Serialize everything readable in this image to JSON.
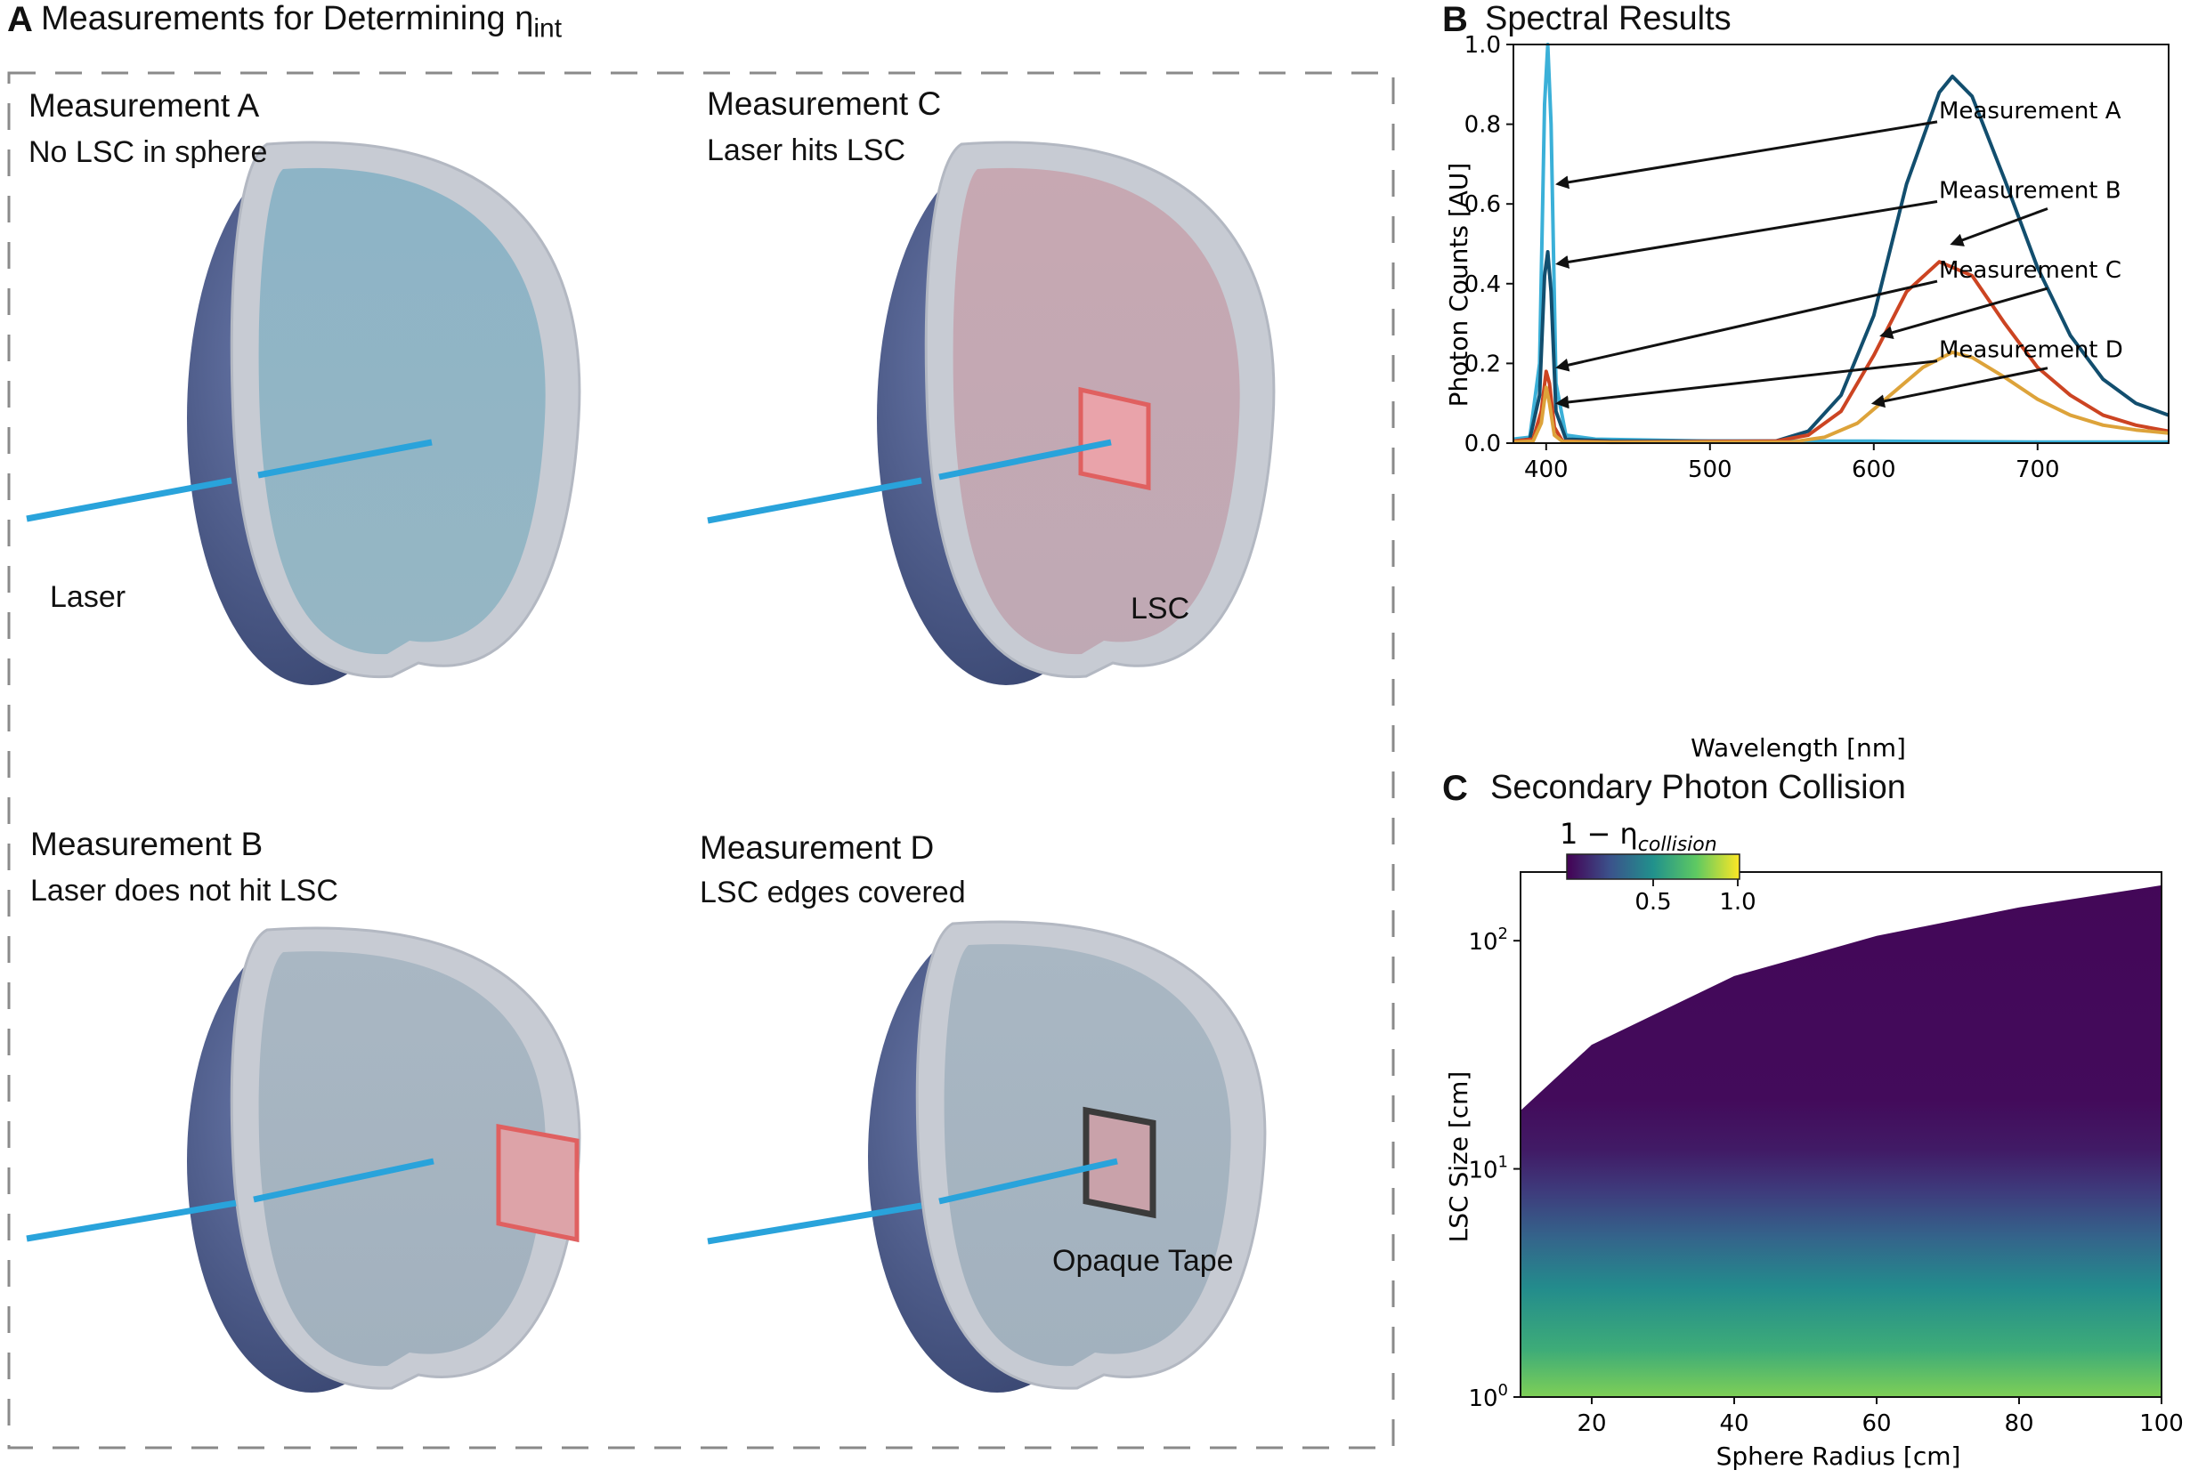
{
  "panel_a": {
    "letter": "A",
    "title": "Measurements for Determining η",
    "title_sub": "int",
    "measurements": [
      {
        "title": "Measurement A",
        "subtitle": "No LSC in sphere",
        "label": "Laser"
      },
      {
        "title": "Measurement C",
        "subtitle": "Laser hits LSC",
        "label": "LSC"
      },
      {
        "title": "Measurement B",
        "subtitle": "Laser does not hit LSC",
        "label": ""
      },
      {
        "title": "Measurement D",
        "subtitle": "LSC edges covered",
        "label": "Opaque Tape"
      }
    ],
    "colors": {
      "sphere_outer": "#4a5a8a",
      "rim": "#c9ccd3",
      "laser": "#29a3db",
      "lsc": "#e06060",
      "face_a": "#8fb3c4",
      "face_c": "#c3a7b0",
      "face_bd": "#a7b5c2"
    }
  },
  "panel_b": {
    "letter": "B",
    "title": "Spectral Results",
    "chart_data": {
      "type": "line",
      "xlabel": "Wavelength [nm]",
      "ylabel": "Photon Counts [AU]",
      "xlim": [
        380,
        780
      ],
      "ylim": [
        0,
        1.0
      ],
      "xticks": [
        400,
        500,
        600,
        700
      ],
      "yticks": [
        0.0,
        0.2,
        0.4,
        0.6,
        0.8,
        1.0
      ],
      "series": [
        {
          "name": "Measurement A",
          "color": "#3bb0d8",
          "x": [
            380,
            390,
            396,
            399,
            401,
            403,
            406,
            412,
            430,
            500,
            560,
            600,
            700,
            780
          ],
          "y": [
            0.01,
            0.015,
            0.2,
            0.85,
            1.0,
            0.8,
            0.15,
            0.02,
            0.01,
            0.005,
            0.005,
            0.005,
            0.003,
            0.003
          ]
        },
        {
          "name": "Measurement B",
          "color": "#124e6e",
          "x": [
            380,
            390,
            396,
            399,
            401,
            403,
            406,
            412,
            440,
            540,
            560,
            580,
            600,
            620,
            640,
            648,
            660,
            680,
            700,
            720,
            740,
            760,
            780
          ],
          "y": [
            0.005,
            0.01,
            0.12,
            0.42,
            0.48,
            0.38,
            0.08,
            0.01,
            0.005,
            0.005,
            0.03,
            0.12,
            0.32,
            0.65,
            0.88,
            0.92,
            0.87,
            0.66,
            0.44,
            0.27,
            0.16,
            0.1,
            0.07
          ]
        },
        {
          "name": "Measurement C",
          "color": "#cc4422",
          "x": [
            380,
            392,
            397,
            400,
            402,
            405,
            410,
            440,
            540,
            560,
            580,
            600,
            620,
            640,
            660,
            680,
            700,
            720,
            740,
            760,
            780
          ],
          "y": [
            0.005,
            0.01,
            0.08,
            0.18,
            0.15,
            0.04,
            0.005,
            0.003,
            0.005,
            0.02,
            0.08,
            0.22,
            0.38,
            0.455,
            0.42,
            0.3,
            0.19,
            0.12,
            0.07,
            0.045,
            0.03
          ]
        },
        {
          "name": "Measurement D",
          "color": "#dda33a",
          "x": [
            380,
            392,
            397,
            400,
            402,
            405,
            410,
            440,
            550,
            570,
            590,
            610,
            630,
            648,
            660,
            680,
            700,
            720,
            740,
            760,
            780
          ],
          "y": [
            0.003,
            0.005,
            0.05,
            0.14,
            0.1,
            0.02,
            0.004,
            0.002,
            0.003,
            0.015,
            0.05,
            0.12,
            0.19,
            0.228,
            0.215,
            0.165,
            0.11,
            0.07,
            0.045,
            0.033,
            0.025
          ]
        }
      ],
      "annotations": [
        {
          "text": "Measurement A",
          "point": [
            405,
            0.65
          ]
        },
        {
          "text": "Measurement B",
          "point": [
            405,
            0.45
          ],
          "point2": [
            648,
            0.5
          ]
        },
        {
          "text": "Measurement C",
          "point": [
            405,
            0.19
          ],
          "point2": [
            605,
            0.27
          ]
        },
        {
          "text": "Measurement D",
          "point": [
            405,
            0.1
          ],
          "point2": [
            600,
            0.1
          ]
        }
      ]
    }
  },
  "panel_c": {
    "letter": "C",
    "title": "Secondary Photon Collision",
    "chart_data": {
      "type": "heatmap",
      "xlabel": "Sphere Radius [cm]",
      "ylabel": "LSC Size [cm]",
      "xlim": [
        10,
        100
      ],
      "ylim": [
        1,
        200
      ],
      "yscale": "log",
      "xticks": [
        20,
        40,
        60,
        80,
        100
      ],
      "yticks": [
        {
          "value": 1,
          "base": "10",
          "exp": "0"
        },
        {
          "value": 10,
          "base": "10",
          "exp": "1"
        },
        {
          "value": 100,
          "base": "10",
          "exp": "2"
        }
      ],
      "colorbar": {
        "label": "1 − η",
        "label_sub": "collision",
        "ticks": [
          "0.5",
          "1.0"
        ],
        "range": [
          0,
          1
        ],
        "colormap": "viridis"
      },
      "value_profile": {
        "lsc_size": [
          1,
          1.6,
          3,
          5,
          8,
          12,
          20,
          200
        ],
        "value": [
          0.8,
          0.62,
          0.48,
          0.32,
          0.18,
          0.08,
          0.03,
          0.02
        ]
      },
      "boundary": {
        "radius": [
          10,
          20,
          40,
          60,
          80,
          100
        ],
        "max_lsc_size": [
          18,
          35,
          70,
          105,
          140,
          175
        ]
      }
    }
  }
}
